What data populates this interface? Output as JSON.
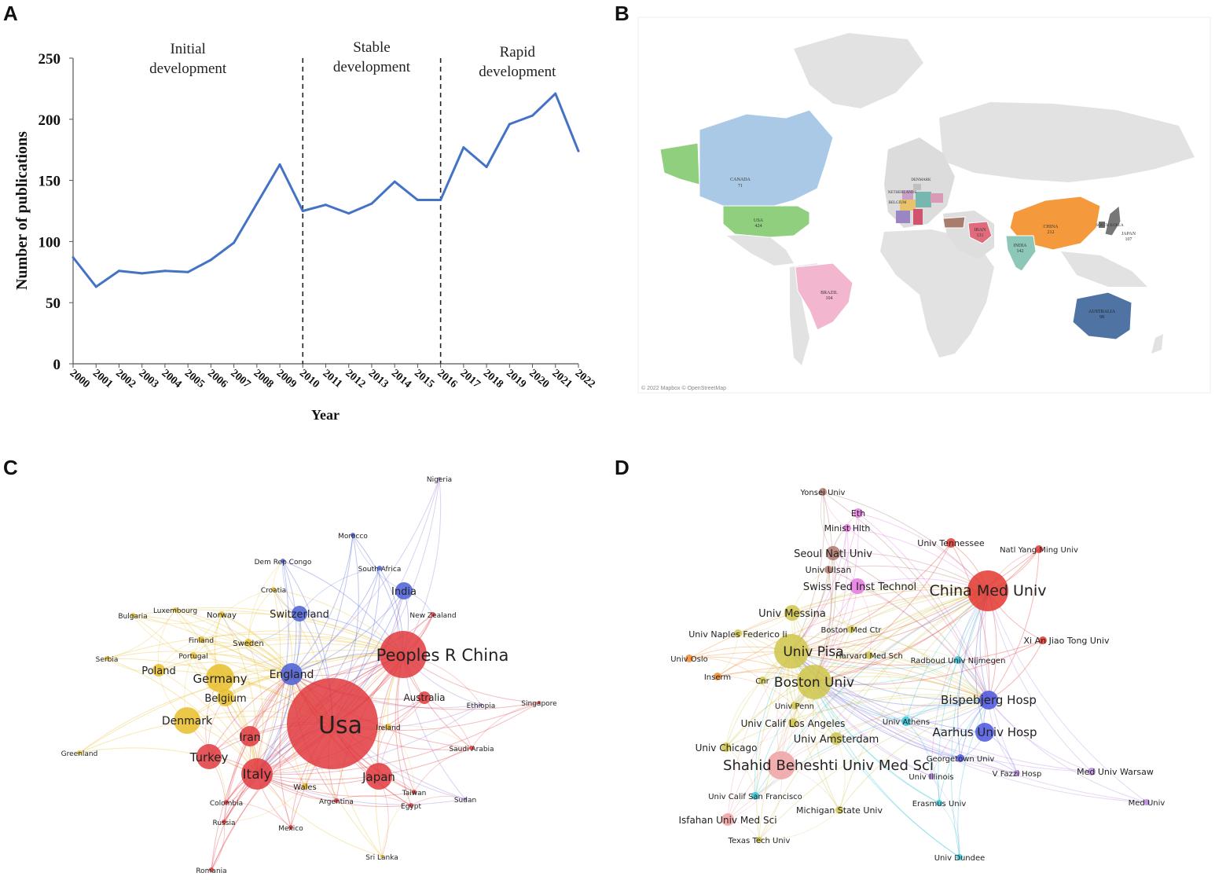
{
  "panels": {
    "a": "A",
    "b": "B",
    "c": "C",
    "d": "D"
  },
  "chart_data": [
    {
      "type": "line",
      "x": [
        2000,
        2001,
        2002,
        2003,
        2004,
        2005,
        2006,
        2007,
        2008,
        2009,
        2010,
        2011,
        2012,
        2013,
        2014,
        2015,
        2016,
        2017,
        2018,
        2019,
        2020,
        2021,
        2022
      ],
      "values": [
        87,
        63,
        76,
        74,
        76,
        75,
        85,
        99,
        131,
        163,
        125,
        130,
        123,
        131,
        149,
        134,
        134,
        177,
        161,
        196,
        203,
        221,
        174
      ],
      "xlabel": "Year",
      "ylabel": "Number of publications",
      "ylim": [
        0,
        250
      ],
      "yticks": [
        0,
        50,
        100,
        150,
        200,
        250
      ],
      "color": "#4472c4",
      "phases": [
        {
          "label_line1": "Initial",
          "label_line2": "development"
        },
        {
          "label_line1": "Stable",
          "label_line2": "development"
        },
        {
          "label_line1": "Rapid",
          "label_line2": "development"
        }
      ],
      "dividers": [
        2010,
        2016
      ]
    },
    {
      "type": "map",
      "attribution": "© 2022 Mapbox © OpenStreetMap",
      "regions": [
        {
          "name": "CANADA",
          "value": "71",
          "color": "#a9c9e6"
        },
        {
          "name": "USA",
          "value": "424",
          "color": "#8fcf7e"
        },
        {
          "name": "BRAZIL",
          "value": "104",
          "color": "#f2b6cf"
        },
        {
          "name": "CHINA",
          "value": "212",
          "color": "#f59a3c"
        },
        {
          "name": "INDIA",
          "value": "142",
          "color": "#8cc7b8"
        },
        {
          "name": "IRAN",
          "value": "131",
          "color": "#e06b7d"
        },
        {
          "name": "JAPAN",
          "value": "107",
          "color": "#777777"
        },
        {
          "name": "AUSTRALIA",
          "value": "98",
          "color": "#4f73a3"
        },
        {
          "name": "DENMARK",
          "value": "",
          "color": "#bfbfbf"
        },
        {
          "name": "NETHERLANDS",
          "value": "",
          "color": "#c9a0c6"
        },
        {
          "name": "BELGIUM",
          "value": "",
          "color": "#e8c36a"
        },
        {
          "name": "SOUTH KOREA",
          "value": "",
          "color": "#6e6e6e"
        }
      ]
    },
    {
      "type": "network",
      "nodes": [
        {
          "label": "Usa",
          "cluster": "red",
          "size": 58,
          "font": 30
        },
        {
          "label": "Peoples R China",
          "cluster": "red",
          "size": 30,
          "font": 21
        },
        {
          "label": "Italy",
          "cluster": "red",
          "size": 20,
          "font": 17
        },
        {
          "label": "Turkey",
          "cluster": "red",
          "size": 16,
          "font": 15
        },
        {
          "label": "Japan",
          "cluster": "red",
          "size": 17,
          "font": 15
        },
        {
          "label": "Iran",
          "cluster": "red",
          "size": 13,
          "font": 14
        },
        {
          "label": "Australia",
          "cluster": "red",
          "size": 8,
          "font": 12
        },
        {
          "label": "Germany",
          "cluster": "yellow",
          "size": 18,
          "font": 15
        },
        {
          "label": "Denmark",
          "cluster": "yellow",
          "size": 17,
          "font": 14
        },
        {
          "label": "Belgium",
          "cluster": "yellow",
          "size": 11,
          "font": 13
        },
        {
          "label": "Poland",
          "cluster": "yellow",
          "size": 8,
          "font": 13
        },
        {
          "label": "England",
          "cluster": "blue",
          "size": 14,
          "font": 14
        },
        {
          "label": "Switzerland",
          "cluster": "blue",
          "size": 10,
          "font": 13
        },
        {
          "label": "India",
          "cluster": "blue",
          "size": 11,
          "font": 13
        },
        {
          "label": "Sweden",
          "cluster": "yellow",
          "size": 5,
          "font": 10
        },
        {
          "label": "Norway",
          "cluster": "yellow",
          "size": 4,
          "font": 10
        },
        {
          "label": "Finland",
          "cluster": "yellow",
          "size": 4,
          "font": 9
        },
        {
          "label": "Portugal",
          "cluster": "yellow",
          "size": 4,
          "font": 9
        },
        {
          "label": "Luxembourg",
          "cluster": "yellow",
          "size": 3,
          "font": 9
        },
        {
          "label": "Bulgaria",
          "cluster": "yellow",
          "size": 3,
          "font": 9
        },
        {
          "label": "Serbia",
          "cluster": "yellow",
          "size": 3,
          "font": 9
        },
        {
          "label": "Greenland",
          "cluster": "yellow",
          "size": 3,
          "font": 9
        },
        {
          "label": "Croatia",
          "cluster": "yellow",
          "size": 3,
          "font": 9
        },
        {
          "label": "Wales",
          "cluster": "yellow",
          "size": 4,
          "font": 10
        },
        {
          "label": "Ireland",
          "cluster": "yellow",
          "size": 4,
          "font": 9
        },
        {
          "label": "Argentina",
          "cluster": "red",
          "size": 3,
          "font": 9
        },
        {
          "label": "Colombia",
          "cluster": "red",
          "size": 3,
          "font": 9
        },
        {
          "label": "Russia",
          "cluster": "red",
          "size": 3,
          "font": 9
        },
        {
          "label": "Mexico",
          "cluster": "red",
          "size": 3,
          "font": 9
        },
        {
          "label": "Romania",
          "cluster": "red",
          "size": 3,
          "font": 9
        },
        {
          "label": "Sri Lanka",
          "cluster": "yellow",
          "size": 2,
          "font": 9
        },
        {
          "label": "Egypt",
          "cluster": "red",
          "size": 3,
          "font": 9
        },
        {
          "label": "Taiwan",
          "cluster": "red",
          "size": 3,
          "font": 9
        },
        {
          "label": "Sudan",
          "cluster": "purple",
          "size": 2,
          "font": 9
        },
        {
          "label": "Saudi Arabia",
          "cluster": "red",
          "size": 3,
          "font": 9
        },
        {
          "label": "Ethiopia",
          "cluster": "purple",
          "size": 2,
          "font": 9
        },
        {
          "label": "Singapore",
          "cluster": "red",
          "size": 2,
          "font": 9
        },
        {
          "label": "New Zealand",
          "cluster": "red",
          "size": 3,
          "font": 9
        },
        {
          "label": "South Africa",
          "cluster": "blue",
          "size": 3,
          "font": 9
        },
        {
          "label": "Morocco",
          "cluster": "blue",
          "size": 3,
          "font": 9
        },
        {
          "label": "Dem Rep Congo",
          "cluster": "blue",
          "size": 3,
          "font": 9
        },
        {
          "label": "Nigeria",
          "cluster": "purple",
          "size": 2,
          "font": 9
        }
      ]
    },
    {
      "type": "network",
      "nodes": [
        {
          "label": "China Med Univ",
          "cluster": "red",
          "size": 26,
          "font": 19
        },
        {
          "label": "Shahid Beheshti Univ Med Sci",
          "cluster": "pink",
          "size": 18,
          "font": 18
        },
        {
          "label": "Univ Pisa",
          "cluster": "olive",
          "size": 22,
          "font": 17
        },
        {
          "label": "Boston Univ",
          "cluster": "olive",
          "size": 22,
          "font": 17
        },
        {
          "label": "Bispebjerg Hosp",
          "cluster": "blue",
          "size": 12,
          "font": 15
        },
        {
          "label": "Aarhus Univ Hosp",
          "cluster": "blue",
          "size": 12,
          "font": 15
        },
        {
          "label": "Swiss Fed Inst Technol",
          "cluster": "magenta",
          "size": 10,
          "font": 13
        },
        {
          "label": "Univ Messina",
          "cluster": "olive",
          "size": 10,
          "font": 13
        },
        {
          "label": "Seoul Natl Univ",
          "cluster": "brown",
          "size": 9,
          "font": 13
        },
        {
          "label": "Univ Amsterdam",
          "cluster": "olive",
          "size": 8,
          "font": 13
        },
        {
          "label": "Univ Calif Los Angeles",
          "cluster": "olive",
          "size": 6,
          "font": 12
        },
        {
          "label": "Isfahan Univ Med Sci",
          "cluster": "pink",
          "size": 8,
          "font": 12
        },
        {
          "label": "Univ Chicago",
          "cluster": "olive",
          "size": 6,
          "font": 12
        },
        {
          "label": "Univ Naples Federico Ii",
          "cluster": "olive",
          "size": 5,
          "font": 11
        },
        {
          "label": "Univ Oslo",
          "cluster": "orange",
          "size": 5,
          "font": 10
        },
        {
          "label": "Inserm",
          "cluster": "orange",
          "size": 5,
          "font": 10
        },
        {
          "label": "Cnr",
          "cluster": "olive",
          "size": 5,
          "font": 10
        },
        {
          "label": "Univ Penn",
          "cluster": "olive",
          "size": 5,
          "font": 10
        },
        {
          "label": "Harvard Med Sch",
          "cluster": "olive",
          "size": 5,
          "font": 10
        },
        {
          "label": "Boston Med Ctr",
          "cluster": "olive",
          "size": 5,
          "font": 10
        },
        {
          "label": "Radboud Univ Nijmegen",
          "cluster": "cyan",
          "size": 5,
          "font": 10
        },
        {
          "label": "Xi An Jiao Tong Univ",
          "cluster": "red",
          "size": 5,
          "font": 11
        },
        {
          "label": "Natl Yang Ming Univ",
          "cluster": "red",
          "size": 5,
          "font": 10
        },
        {
          "label": "Univ Tennessee",
          "cluster": "red",
          "size": 6,
          "font": 11
        },
        {
          "label": "Univ Athens",
          "cluster": "cyan",
          "size": 6,
          "font": 10
        },
        {
          "label": "Georgetown Univ",
          "cluster": "blue",
          "size": 5,
          "font": 10
        },
        {
          "label": "Univ Illinois",
          "cluster": "purple",
          "size": 4,
          "font": 10
        },
        {
          "label": "V Fazzi Hosp",
          "cluster": "purple",
          "size": 4,
          "font": 10
        },
        {
          "label": "Med Univ Warsaw",
          "cluster": "purple",
          "size": 5,
          "font": 11
        },
        {
          "label": "Med Univ",
          "cluster": "purple",
          "size": 4,
          "font": 10
        },
        {
          "label": "Erasmus Univ",
          "cluster": "cyan",
          "size": 4,
          "font": 10
        },
        {
          "label": "Michigan State Univ",
          "cluster": "olive",
          "size": 5,
          "font": 11
        },
        {
          "label": "Univ Calif San Francisco",
          "cluster": "cyan",
          "size": 5,
          "font": 10
        },
        {
          "label": "Texas Tech Univ",
          "cluster": "olive",
          "size": 4,
          "font": 10
        },
        {
          "label": "Univ Dundee",
          "cluster": "cyan",
          "size": 4,
          "font": 10
        },
        {
          "label": "Univ Ulsan",
          "cluster": "brown",
          "size": 5,
          "font": 11
        },
        {
          "label": "Minist Hlth",
          "cluster": "magenta",
          "size": 5,
          "font": 11
        },
        {
          "label": "Eth",
          "cluster": "magenta",
          "size": 6,
          "font": 11
        },
        {
          "label": "Yonsei Univ",
          "cluster": "brown",
          "size": 5,
          "font": 10
        }
      ]
    }
  ]
}
